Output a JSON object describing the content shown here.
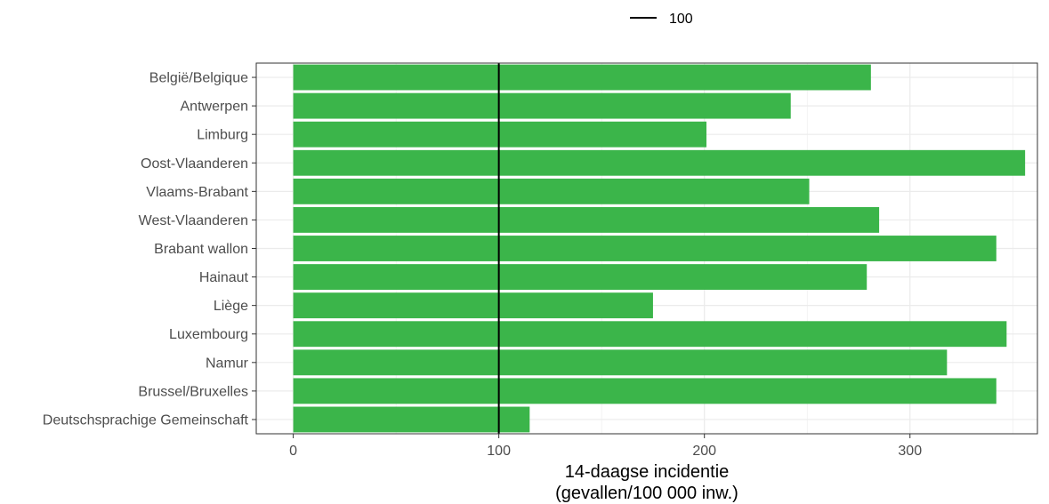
{
  "chart_data": {
    "type": "bar",
    "orientation": "horizontal",
    "categories": [
      "België/Belgique",
      "Antwerpen",
      "Limburg",
      "Oost-Vlaanderen",
      "Vlaams-Brabant",
      "West-Vlaanderen",
      "Brabant wallon",
      "Hainaut",
      "Liège",
      "Luxembourg",
      "Namur",
      "Brussel/Bruxelles",
      "Deutschsprachige Gemeinschaft"
    ],
    "values": [
      281,
      242,
      201,
      356,
      251,
      285,
      342,
      279,
      175,
      347,
      318,
      342,
      115
    ],
    "xlabel_line1": "14-daagse incidentie",
    "xlabel_line2": "(gevallen/100 000 inw.)",
    "ylabel": "",
    "xlim": [
      -18,
      362
    ],
    "xticks": [
      0,
      100,
      200,
      300
    ],
    "reference_line": {
      "value": 100,
      "label": "100"
    },
    "legend_position": "top",
    "grid": true,
    "colors": {
      "bar": "#3bb54a",
      "reference_line": "#000000",
      "grid": "#ebebeb",
      "panel_border": "#333333"
    }
  }
}
